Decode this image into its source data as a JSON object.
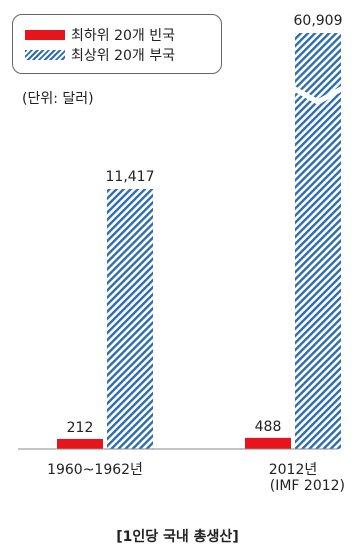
{
  "legend": {
    "poor_label": "최하위 20개 빈국",
    "rich_label": "최상위 20개 부국"
  },
  "unit_label": "(단위: 달러)",
  "source_label": "(IMF 2012)",
  "caption": "[1인당 국내 총생산]",
  "colors": {
    "poor": "#e8141b",
    "rich": "#2d6cb3"
  },
  "chart_data": {
    "type": "bar",
    "title": "",
    "categories": [
      "1960~1962년",
      "2012년"
    ],
    "series": [
      {
        "name": "최하위 20개 빈국",
        "values": [
          212,
          488
        ]
      },
      {
        "name": "최상위 20개 부국",
        "values": [
          11417,
          60909
        ]
      }
    ],
    "value_labels": [
      [
        "212",
        "488"
      ],
      [
        "11,417",
        "60,909"
      ]
    ],
    "y_axis_break": true,
    "xlabel": "",
    "ylabel": ""
  }
}
